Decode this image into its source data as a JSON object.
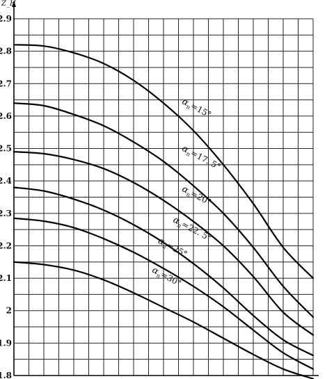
{
  "chart_data": {
    "type": "line",
    "title": "",
    "xlabel": "",
    "ylabel": "Z_H",
    "ylim": [
      1.8,
      2.9
    ],
    "xlim": [
      0,
      1
    ],
    "yticks": [
      {
        "value": 2.9,
        "label": "2.9"
      },
      {
        "value": 2.8,
        "label": "2.8"
      },
      {
        "value": 2.7,
        "label": "2.7"
      },
      {
        "value": 2.6,
        "label": "2.6"
      },
      {
        "value": 2.5,
        "label": "2.5"
      },
      {
        "value": 2.4,
        "label": "2.4"
      },
      {
        "value": 2.3,
        "label": "2.3"
      },
      {
        "value": 2.2,
        "label": "2.2"
      },
      {
        "value": 2.1,
        "label": "2.1"
      },
      {
        "value": 2.0,
        "label": "2"
      },
      {
        "value": 1.9,
        "label": "1.9"
      },
      {
        "value": 1.8,
        "label": "1.8"
      }
    ],
    "grid": true,
    "series": [
      {
        "name": "αn=15°",
        "x": [
          0,
          0.1,
          0.2,
          0.3,
          0.4,
          0.5,
          0.6,
          0.7,
          0.8,
          0.9,
          1.0
        ],
        "y": [
          2.82,
          2.816,
          2.795,
          2.762,
          2.71,
          2.64,
          2.555,
          2.45,
          2.33,
          2.195,
          2.1
        ]
      },
      {
        "name": "αn=17.5°",
        "x": [
          0,
          0.1,
          0.2,
          0.3,
          0.4,
          0.5,
          0.6,
          0.7,
          0.8,
          0.9,
          1.0
        ],
        "y": [
          2.64,
          2.632,
          2.605,
          2.57,
          2.52,
          2.46,
          2.385,
          2.3,
          2.195,
          2.075,
          1.98
        ]
      },
      {
        "name": "αn=20°",
        "x": [
          0,
          0.1,
          0.2,
          0.3,
          0.4,
          0.5,
          0.6,
          0.7,
          0.8,
          0.9,
          1.0
        ],
        "y": [
          2.49,
          2.484,
          2.466,
          2.438,
          2.395,
          2.34,
          2.275,
          2.2,
          2.105,
          1.995,
          1.925
        ]
      },
      {
        "name": "αn=22.5°",
        "x": [
          0,
          0.1,
          0.2,
          0.3,
          0.4,
          0.5,
          0.6,
          0.7,
          0.8,
          0.9,
          1.0
        ],
        "y": [
          2.38,
          2.369,
          2.344,
          2.31,
          2.265,
          2.21,
          2.145,
          2.07,
          1.985,
          1.91,
          1.862
        ]
      },
      {
        "name": "αn=25°",
        "x": [
          0,
          0.1,
          0.2,
          0.3,
          0.4,
          0.5,
          0.6,
          0.7,
          0.8,
          0.9,
          1.0
        ],
        "y": [
          2.285,
          2.276,
          2.256,
          2.222,
          2.18,
          2.13,
          2.075,
          2.012,
          1.94,
          1.87,
          1.82
        ]
      },
      {
        "name": "αn=30°",
        "x": [
          0,
          0.1,
          0.2,
          0.3,
          0.4,
          0.5,
          0.6,
          0.7,
          0.8,
          0.9,
          1.0
        ],
        "y": [
          2.15,
          2.142,
          2.125,
          2.095,
          2.055,
          2.01,
          1.965,
          1.915,
          1.865,
          1.82,
          1.79
        ]
      }
    ],
    "annotations": [
      {
        "text": "α",
        "sub": "n",
        "rest": "=15°",
        "x": 0.56,
        "y": 2.64
      },
      {
        "text": "α",
        "sub": "n",
        "rest": "=17. 5°",
        "x": 0.56,
        "y": 2.495
      },
      {
        "text": "α",
        "sub": "n",
        "rest": "=20°",
        "x": 0.56,
        "y": 2.37
      },
      {
        "text": "α",
        "sub": "n",
        "rest": "=22. 5°",
        "x": 0.53,
        "y": 2.275
      },
      {
        "text": "α",
        "sub": "n",
        "rest": "=25°",
        "x": 0.48,
        "y": 2.21
      },
      {
        "text": "α",
        "sub": "n",
        "rest": "=30°",
        "x": 0.46,
        "y": 2.12
      }
    ]
  }
}
